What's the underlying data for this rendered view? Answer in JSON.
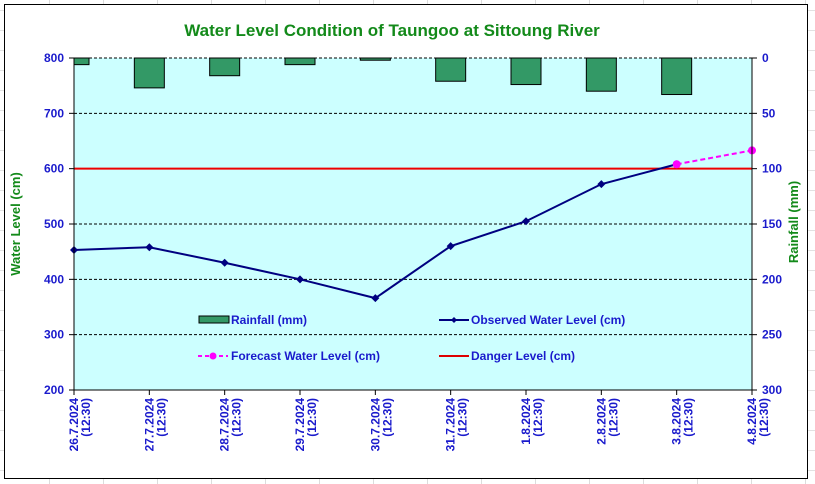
{
  "chart_data": {
    "type": "line",
    "title": "Water Level Condition of Taungoo at  Sittoung River",
    "xlabel": "",
    "ylabel": "Water Level (cm)",
    "y2label": "Rainfall (mm)",
    "ylim": [
      200,
      800
    ],
    "y2lim": [
      0,
      300
    ],
    "y2_inverted": true,
    "yticks": [
      200,
      300,
      400,
      500,
      600,
      700,
      800
    ],
    "y2ticks": [
      0,
      50,
      100,
      150,
      200,
      250,
      300
    ],
    "grid": true,
    "categories": [
      {
        "date": "26.7.2024",
        "time": "(12:30)"
      },
      {
        "date": "27.7.2024",
        "time": "(12:30)"
      },
      {
        "date": "28.7.2024",
        "time": "(12:30)"
      },
      {
        "date": "29.7.2024",
        "time": "(12:30)"
      },
      {
        "date": "30.7.2024",
        "time": "(12:30)"
      },
      {
        "date": "31.7.2024",
        "time": "(12:30)"
      },
      {
        "date": "1.8.2024",
        "time": "(12:30)"
      },
      {
        "date": "2.8.2024",
        "time": "(12:30)"
      },
      {
        "date": "3.8.2024",
        "time": "(12:30)"
      },
      {
        "date": "4.8.2024",
        "time": "(12:30)"
      }
    ],
    "series": [
      {
        "name": "Rainfall (mm)",
        "type": "bar",
        "axis": "y2",
        "color": "#339966",
        "values": [
          6,
          27,
          16,
          6,
          2,
          21,
          24,
          30,
          33,
          null
        ]
      },
      {
        "name": "Observed Water Level (cm)",
        "type": "line",
        "axis": "y",
        "color": "#000080",
        "marker": "diamond",
        "values": [
          453,
          458,
          430,
          400,
          366,
          460,
          505,
          572,
          608,
          null
        ]
      },
      {
        "name": "Forecast Water Level (cm)",
        "type": "line",
        "axis": "y",
        "color": "#ff00ff",
        "marker": "circle",
        "dashed": true,
        "values": [
          null,
          null,
          null,
          null,
          null,
          null,
          null,
          null,
          608,
          633
        ]
      },
      {
        "name": "Danger Level (cm)",
        "type": "line",
        "axis": "y",
        "color": "#ff0000",
        "values": [
          600,
          600,
          600,
          600,
          600,
          600,
          600,
          600,
          600,
          600
        ]
      }
    ],
    "legend": {
      "placement": "inside-bottom",
      "items": [
        "Rainfall (mm)",
        "Observed Water Level (cm)",
        "Forecast Water Level (cm)",
        "Danger Level (cm)"
      ]
    },
    "plot_bg": "#ccffff"
  }
}
